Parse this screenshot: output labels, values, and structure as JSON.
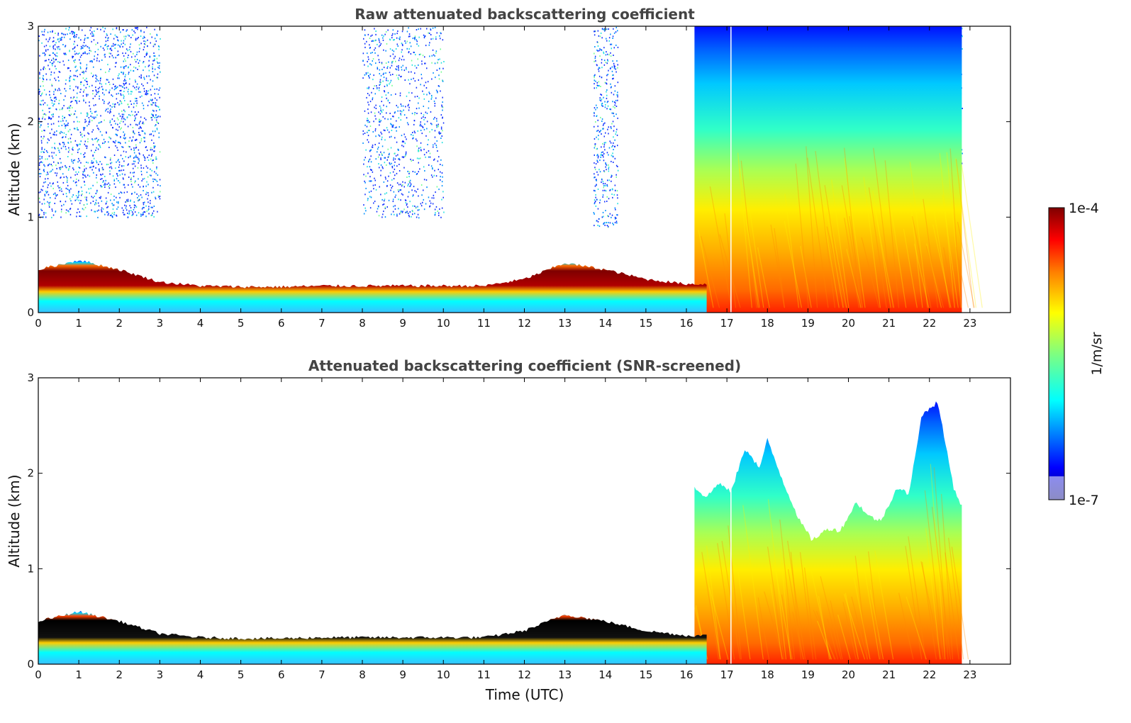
{
  "chart_data": [
    {
      "type": "heatmap",
      "title": "Raw attenuated backscattering coefficient",
      "xlabel": "",
      "ylabel": "Altitude (km)",
      "xlim": [
        0,
        24
      ],
      "ylim": [
        0,
        3
      ],
      "x_ticks": [
        "0",
        "1",
        "2",
        "3",
        "4",
        "5",
        "6",
        "7",
        "8",
        "9",
        "10",
        "11",
        "12",
        "13",
        "14",
        "15",
        "16",
        "17",
        "18",
        "19",
        "20",
        "21",
        "22",
        "23"
      ],
      "y_ticks": [
        "0",
        "1",
        "2",
        "3"
      ],
      "data_end_hour": 22.8,
      "colorscale": "jet",
      "features": [
        {
          "name": "boundary layer",
          "start_hour": 0,
          "end_hour": 16.5,
          "top_km": [
            0.45,
            0.55,
            0.45,
            0.32,
            0.28,
            0.27,
            0.27,
            0.28,
            0.28,
            0.28,
            0.28,
            0.28,
            0.35,
            0.52,
            0.45,
            0.35,
            0.3
          ]
        },
        {
          "name": "aerosol plume",
          "start_hour": 16.2,
          "end_hour": 22.8
        },
        {
          "name": "noise",
          "regions": [
            "0-3 h",
            "8-10 h",
            "13.7-14.3 h",
            "16.5-22.8 h"
          ]
        }
      ]
    },
    {
      "type": "heatmap",
      "title": "Attenuated backscattering coefficient (SNR-screened)",
      "xlabel": "Time (UTC)",
      "ylabel": "Altitude (km)",
      "xlim": [
        0,
        24
      ],
      "ylim": [
        0,
        3
      ],
      "x_ticks": [
        "0",
        "1",
        "2",
        "3",
        "4",
        "5",
        "6",
        "7",
        "8",
        "9",
        "10",
        "11",
        "12",
        "13",
        "14",
        "15",
        "16",
        "17",
        "18",
        "19",
        "20",
        "21",
        "22",
        "23"
      ],
      "y_ticks": [
        "0",
        "1",
        "2",
        "3"
      ],
      "data_end_hour": 22.8,
      "colorscale": "jet",
      "plume_top": {
        "hours": [
          16.2,
          16.5,
          16.8,
          17.1,
          17.4,
          17.5,
          17.8,
          18.0,
          18.4,
          18.8,
          19.1,
          19.5,
          19.8,
          20.2,
          20.5,
          20.8,
          21.2,
          21.5,
          21.8,
          22.2,
          22.6,
          22.8
        ],
        "top_km": [
          1.85,
          1.75,
          1.9,
          1.8,
          2.2,
          2.25,
          2.05,
          2.35,
          1.9,
          1.5,
          1.3,
          1.42,
          1.4,
          1.7,
          1.55,
          1.5,
          1.85,
          1.78,
          2.6,
          2.75,
          1.85,
          1.65
        ]
      }
    }
  ],
  "colorbar": {
    "max_label": "1e-4",
    "min_label": "1e-7",
    "unit_label": "1/m/sr",
    "colors": [
      "#00007f",
      "#0000ff",
      "#007fff",
      "#00ffff",
      "#7fff7f",
      "#ffff00",
      "#ff7f00",
      "#ff0000",
      "#7f0000"
    ]
  }
}
